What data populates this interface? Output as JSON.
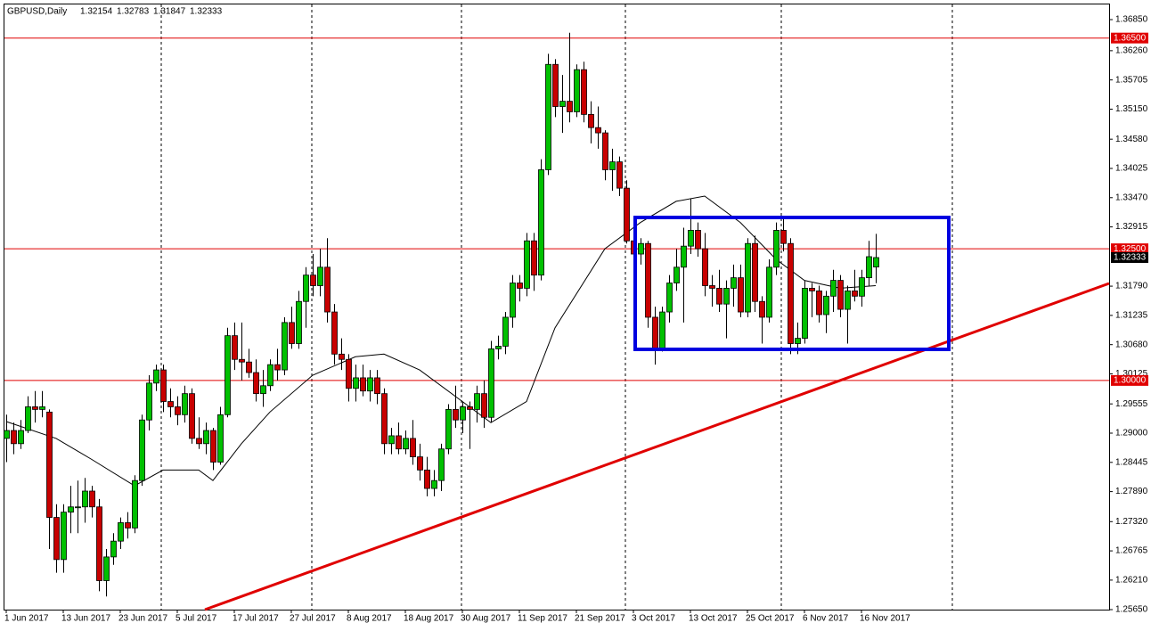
{
  "chart_data": {
    "type": "candlestick",
    "symbol": "GBPUSD,Daily",
    "header_values": [
      1.32154,
      1.32783,
      1.31847,
      1.32333
    ],
    "up_color": "#00c000",
    "down_color": "#c80000",
    "ylim": [
      1.2565,
      1.3685
    ],
    "yticks": [
      {
        "value": 1.3685,
        "label": "1.36850"
      },
      {
        "value": 1.3626,
        "label": "1.36260"
      },
      {
        "value": 1.35705,
        "label": "1.35705"
      },
      {
        "value": 1.3515,
        "label": "1.35150"
      },
      {
        "value": 1.3458,
        "label": "1.34580"
      },
      {
        "value": 1.34025,
        "label": "1.34025"
      },
      {
        "value": 1.3347,
        "label": "1.33470"
      },
      {
        "value": 1.32915,
        "label": "1.32915"
      },
      {
        "value": 1.3179,
        "label": "1.31790"
      },
      {
        "value": 1.31235,
        "label": "1.31235"
      },
      {
        "value": 1.3068,
        "label": "1.30680"
      },
      {
        "value": 1.30125,
        "label": "1.30125"
      },
      {
        "value": 1.29555,
        "label": "1.29555"
      },
      {
        "value": 1.29,
        "label": "1.29000"
      },
      {
        "value": 1.28445,
        "label": "1.28445"
      },
      {
        "value": 1.2789,
        "label": "1.27890"
      },
      {
        "value": 1.2732,
        "label": "1.27320"
      },
      {
        "value": 1.26765,
        "label": "1.26765"
      },
      {
        "value": 1.2621,
        "label": "1.26210"
      },
      {
        "value": 1.2565,
        "label": "1.25650"
      }
    ],
    "levels": [
      {
        "value": 1.365,
        "label": "1.36500"
      },
      {
        "value": 1.325,
        "label": "1.32500"
      },
      {
        "value": 1.3,
        "label": "1.30000"
      }
    ],
    "level_color": "#e00000",
    "current_price": {
      "value": 1.32333,
      "label": "1.32333"
    },
    "categories": [
      "1 Jun 2017",
      null,
      null,
      null,
      null,
      null,
      null,
      null,
      "13 Jun 2017",
      null,
      null,
      null,
      null,
      null,
      null,
      null,
      "23 Jun 2017",
      null,
      null,
      null,
      null,
      null,
      null,
      null,
      "5 Jul 2017",
      null,
      null,
      null,
      null,
      null,
      null,
      null,
      "17 Jul 2017",
      null,
      null,
      null,
      null,
      null,
      null,
      null,
      "27 Jul 2017",
      null,
      null,
      null,
      null,
      null,
      null,
      null,
      "8 Aug 2017",
      null,
      null,
      null,
      null,
      null,
      null,
      null,
      "18 Aug 2017",
      null,
      null,
      null,
      null,
      null,
      null,
      null,
      "30 Aug 2017",
      null,
      null,
      null,
      null,
      null,
      null,
      null,
      "11 Sep 2017",
      null,
      null,
      null,
      null,
      null,
      null,
      null,
      "21 Sep 2017",
      null,
      null,
      null,
      null,
      null,
      null,
      null,
      "3 Oct 2017",
      null,
      null,
      null,
      null,
      null,
      null,
      null,
      "13 Oct 2017",
      null,
      null,
      null,
      null,
      null,
      null,
      null,
      "25 Oct 2017",
      null,
      null,
      null,
      null,
      null,
      null,
      null,
      "6 Nov 2017",
      null,
      null,
      null,
      null,
      null,
      null,
      null,
      "16 Nov 2017",
      null,
      null
    ],
    "ohlc": [
      [
        1.289,
        1.2935,
        1.2845,
        1.2905
      ],
      [
        1.2905,
        1.292,
        1.286,
        1.288
      ],
      [
        1.288,
        1.2925,
        1.287,
        1.2905
      ],
      [
        1.2905,
        1.297,
        1.29,
        1.295
      ],
      [
        1.295,
        1.298,
        1.292,
        1.2945
      ],
      [
        1.2945,
        1.298,
        1.293,
        1.295
      ],
      [
        1.294,
        1.2945,
        1.268,
        1.274
      ],
      [
        1.274,
        1.2765,
        1.2635,
        1.266
      ],
      [
        1.266,
        1.2765,
        1.2635,
        1.275
      ],
      [
        1.275,
        1.28,
        1.271,
        1.276
      ],
      [
        1.276,
        1.281,
        1.271,
        1.276
      ],
      [
        1.276,
        1.2815,
        1.273,
        1.279
      ],
      [
        1.279,
        1.28,
        1.274,
        1.276
      ],
      [
        1.276,
        1.2775,
        1.26,
        1.262
      ],
      [
        1.262,
        1.268,
        1.259,
        1.2665
      ],
      [
        1.2665,
        1.271,
        1.265,
        1.2695
      ],
      [
        1.2695,
        1.274,
        1.268,
        1.273
      ],
      [
        1.273,
        1.275,
        1.27,
        1.272
      ],
      [
        1.272,
        1.282,
        1.271,
        1.281
      ],
      [
        1.281,
        1.2935,
        1.28,
        1.2925
      ],
      [
        1.2925,
        1.301,
        1.2905,
        1.2995
      ],
      [
        1.2995,
        1.303,
        1.298,
        1.302
      ],
      [
        1.302,
        1.303,
        1.294,
        1.296
      ],
      [
        1.296,
        1.2985,
        1.293,
        1.295
      ],
      [
        1.295,
        1.297,
        1.2915,
        1.2935
      ],
      [
        1.2935,
        1.299,
        1.292,
        1.2975
      ],
      [
        1.2975,
        1.2985,
        1.288,
        1.289
      ],
      [
        1.289,
        1.293,
        1.287,
        1.288
      ],
      [
        1.288,
        1.292,
        1.286,
        1.2905
      ],
      [
        1.2905,
        1.291,
        1.283,
        1.2845
      ],
      [
        1.2845,
        1.295,
        1.284,
        1.2935
      ],
      [
        1.2935,
        1.31,
        1.293,
        1.3085
      ],
      [
        1.3085,
        1.311,
        1.302,
        1.304
      ],
      [
        1.304,
        1.311,
        1.3,
        1.3035
      ],
      [
        1.3035,
        1.306,
        1.3005,
        1.3015
      ],
      [
        1.3015,
        1.304,
        1.296,
        1.2975
      ],
      [
        1.2975,
        1.302,
        1.295,
        1.299
      ],
      [
        1.299,
        1.304,
        1.298,
        1.303
      ],
      [
        1.303,
        1.306,
        1.3,
        1.302
      ],
      [
        1.302,
        1.312,
        1.301,
        1.311
      ],
      [
        1.311,
        1.314,
        1.306,
        1.307
      ],
      [
        1.307,
        1.317,
        1.306,
        1.315
      ],
      [
        1.315,
        1.3215,
        1.31,
        1.32
      ],
      [
        1.32,
        1.324,
        1.316,
        1.318
      ],
      [
        1.318,
        1.325,
        1.316,
        1.3215
      ],
      [
        1.3215,
        1.327,
        1.311,
        1.313
      ],
      [
        1.313,
        1.3145,
        1.303,
        1.305
      ],
      [
        1.305,
        1.308,
        1.302,
        1.304
      ],
      [
        1.304,
        1.305,
        1.296,
        1.2985
      ],
      [
        1.2985,
        1.303,
        1.296,
        1.3005
      ],
      [
        1.3005,
        1.303,
        1.297,
        1.298
      ],
      [
        1.298,
        1.302,
        1.296,
        1.3005
      ],
      [
        1.3005,
        1.302,
        1.2955,
        1.2975
      ],
      [
        1.2975,
        1.2985,
        1.286,
        1.288
      ],
      [
        1.288,
        1.291,
        1.286,
        1.2895
      ],
      [
        1.2895,
        1.292,
        1.286,
        1.287
      ],
      [
        1.287,
        1.2905,
        1.286,
        1.289
      ],
      [
        1.289,
        1.2925,
        1.284,
        1.2855
      ],
      [
        1.2855,
        1.288,
        1.281,
        1.283
      ],
      [
        1.283,
        1.2855,
        1.278,
        1.2795
      ],
      [
        1.2795,
        1.283,
        1.278,
        1.281
      ],
      [
        1.281,
        1.288,
        1.279,
        1.287
      ],
      [
        1.287,
        1.2955,
        1.286,
        1.2945
      ],
      [
        1.2945,
        1.299,
        1.291,
        1.2925
      ],
      [
        1.2925,
        1.296,
        1.29,
        1.295
      ],
      [
        1.295,
        1.296,
        1.287,
        1.2945
      ],
      [
        1.2945,
        1.299,
        1.292,
        1.2975
      ],
      [
        1.2975,
        1.3,
        1.291,
        1.293
      ],
      [
        1.293,
        1.3075,
        1.292,
        1.306
      ],
      [
        1.306,
        1.3085,
        1.304,
        1.3065
      ],
      [
        1.3065,
        1.313,
        1.305,
        1.312
      ],
      [
        1.312,
        1.32,
        1.31,
        1.3185
      ],
      [
        1.3185,
        1.32,
        1.315,
        1.3175
      ],
      [
        1.3175,
        1.328,
        1.316,
        1.3265
      ],
      [
        1.3265,
        1.328,
        1.317,
        1.32
      ],
      [
        1.32,
        1.342,
        1.319,
        1.34
      ],
      [
        1.34,
        1.362,
        1.339,
        1.36
      ],
      [
        1.36,
        1.361,
        1.35,
        1.352
      ],
      [
        1.352,
        1.358,
        1.347,
        1.353
      ],
      [
        1.353,
        1.366,
        1.349,
        1.351
      ],
      [
        1.351,
        1.36,
        1.35,
        1.359
      ],
      [
        1.359,
        1.3605,
        1.349,
        1.3505
      ],
      [
        1.3505,
        1.353,
        1.345,
        1.348
      ],
      [
        1.348,
        1.352,
        1.344,
        1.347
      ],
      [
        1.347,
        1.3475,
        1.338,
        1.34
      ],
      [
        1.34,
        1.344,
        1.336,
        1.3415
      ],
      [
        1.3415,
        1.3425,
        1.335,
        1.3365
      ],
      [
        1.3365,
        1.338,
        1.326,
        1.3265
      ],
      [
        1.3265,
        1.329,
        1.323,
        1.324
      ],
      [
        1.324,
        1.327,
        1.322,
        1.326
      ],
      [
        1.326,
        1.3265,
        1.31,
        1.312
      ],
      [
        1.312,
        1.314,
        1.303,
        1.306
      ],
      [
        1.306,
        1.314,
        1.3055,
        1.313
      ],
      [
        1.313,
        1.32,
        1.311,
        1.3185
      ],
      [
        1.3185,
        1.325,
        1.317,
        1.3215
      ],
      [
        1.3215,
        1.329,
        1.311,
        1.3255
      ],
      [
        1.3255,
        1.3345,
        1.324,
        1.3285
      ],
      [
        1.3285,
        1.33,
        1.3235,
        1.325
      ],
      [
        1.325,
        1.328,
        1.316,
        1.318
      ],
      [
        1.318,
        1.32,
        1.314,
        1.3175
      ],
      [
        1.3175,
        1.321,
        1.313,
        1.3145
      ],
      [
        1.3145,
        1.319,
        1.308,
        1.3175
      ],
      [
        1.3175,
        1.322,
        1.314,
        1.3195
      ],
      [
        1.3195,
        1.322,
        1.312,
        1.313
      ],
      [
        1.313,
        1.327,
        1.312,
        1.326
      ],
      [
        1.326,
        1.3275,
        1.313,
        1.315
      ],
      [
        1.315,
        1.316,
        1.307,
        1.312
      ],
      [
        1.312,
        1.323,
        1.311,
        1.3215
      ],
      [
        1.3215,
        1.33,
        1.32,
        1.3285
      ],
      [
        1.3285,
        1.331,
        1.3245,
        1.326
      ],
      [
        1.326,
        1.327,
        1.305,
        1.307
      ],
      [
        1.307,
        1.311,
        1.305,
        1.308
      ],
      [
        1.308,
        1.319,
        1.307,
        1.3175
      ],
      [
        1.3175,
        1.3185,
        1.312,
        1.317
      ],
      [
        1.317,
        1.318,
        1.311,
        1.3125
      ],
      [
        1.3125,
        1.317,
        1.309,
        1.316
      ],
      [
        1.316,
        1.321,
        1.313,
        1.319
      ],
      [
        1.319,
        1.32,
        1.312,
        1.3135
      ],
      [
        1.3135,
        1.318,
        1.307,
        1.317
      ],
      [
        1.317,
        1.321,
        1.315,
        1.316
      ],
      [
        1.316,
        1.321,
        1.314,
        1.3195
      ],
      [
        1.3195,
        1.3265,
        1.318,
        1.3235
      ],
      [
        1.32154,
        1.32783,
        1.31847,
        1.32333
      ]
    ],
    "ma": {
      "x": [
        0,
        7,
        12,
        18,
        22,
        27,
        29,
        33,
        37,
        43,
        49,
        53,
        58,
        63,
        68,
        73,
        77,
        84,
        89,
        94,
        98,
        103,
        108,
        112,
        117,
        122
      ],
      "values": [
        1.2922,
        1.289,
        1.285,
        1.28,
        1.283,
        1.283,
        1.281,
        1.288,
        1.294,
        1.301,
        1.3045,
        1.305,
        1.302,
        1.297,
        1.292,
        1.296,
        1.31,
        1.325,
        1.33,
        1.334,
        1.335,
        1.33,
        1.323,
        1.319,
        1.3175,
        1.318
      ]
    }
  }
}
